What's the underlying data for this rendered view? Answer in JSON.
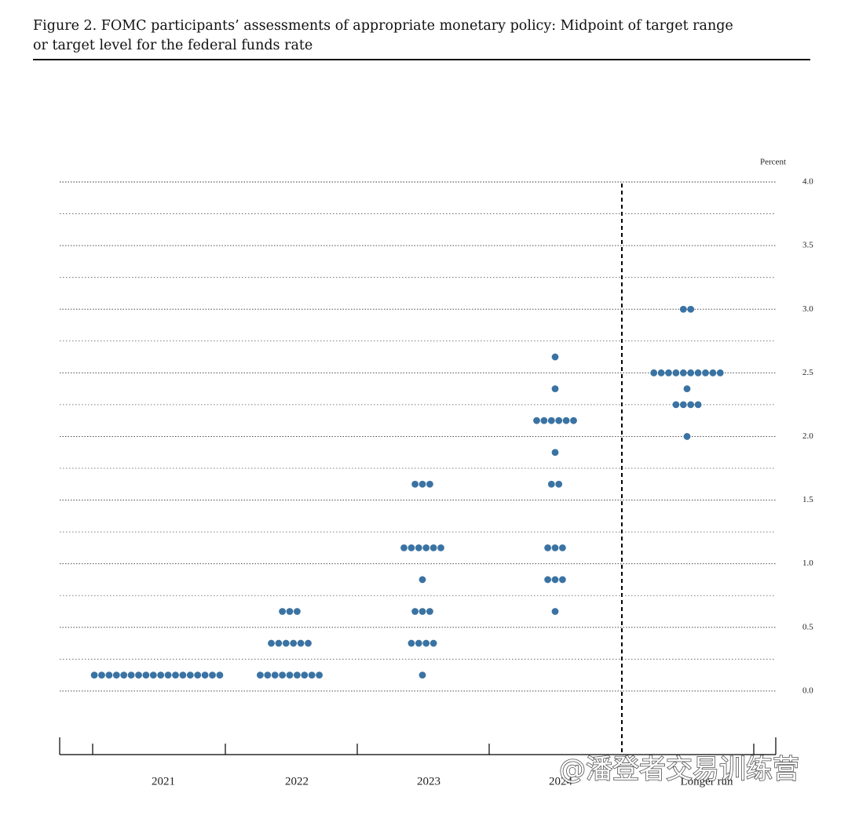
{
  "chart_data": {
    "type": "dotplot",
    "title_lines": [
      "Figure 2.  FOMC participants’ assessments of appropriate monetary policy:  Midpoint of target range",
      "or target level for the federal funds rate"
    ],
    "y_label": "Percent",
    "color": "#3a73a3",
    "ylim": [
      -0.5,
      4.0
    ],
    "yticks": [
      {
        "value": 0,
        "label": "0.0"
      },
      {
        "value": 0.5,
        "label": "0.5"
      },
      {
        "value": 1,
        "label": "1.0"
      },
      {
        "value": 1.5,
        "label": "1.5"
      },
      {
        "value": 2,
        "label": "2.0"
      },
      {
        "value": 2.5,
        "label": "2.5"
      },
      {
        "value": 3,
        "label": "3.0"
      },
      {
        "value": 3.5,
        "label": "3.5"
      },
      {
        "value": 4,
        "label": "4.0"
      }
    ],
    "yminor": [
      0.25,
      0.75,
      1.25,
      1.75,
      2.25,
      2.75,
      3.25,
      3.75
    ],
    "columns": [
      {
        "label": "2021",
        "dots": [
          {
            "rate": 0.125,
            "count": 18
          }
        ]
      },
      {
        "label": "2022",
        "dots": [
          {
            "rate": 0.125,
            "count": 9
          },
          {
            "rate": 0.375,
            "count": 6
          },
          {
            "rate": 0.625,
            "count": 3
          }
        ]
      },
      {
        "label": "2023",
        "dots": [
          {
            "rate": 0.125,
            "count": 1
          },
          {
            "rate": 0.375,
            "count": 4
          },
          {
            "rate": 0.625,
            "count": 3
          },
          {
            "rate": 0.875,
            "count": 1
          },
          {
            "rate": 1.125,
            "count": 6
          },
          {
            "rate": 1.625,
            "count": 3
          }
        ]
      },
      {
        "label": "2024",
        "dots": [
          {
            "rate": 0.625,
            "count": 1
          },
          {
            "rate": 0.875,
            "count": 3
          },
          {
            "rate": 1.125,
            "count": 3
          },
          {
            "rate": 1.625,
            "count": 2
          },
          {
            "rate": 1.875,
            "count": 1
          },
          {
            "rate": 2.125,
            "count": 6
          },
          {
            "rate": 2.375,
            "count": 1
          },
          {
            "rate": 2.625,
            "count": 1
          }
        ]
      },
      {
        "label": "Longer run",
        "dots": [
          {
            "rate": 2.0,
            "count": 1
          },
          {
            "rate": 2.25,
            "count": 4
          },
          {
            "rate": 2.375,
            "count": 1
          },
          {
            "rate": 2.5,
            "count": 10
          },
          {
            "rate": 3.0,
            "count": 2
          }
        ]
      }
    ],
    "watermark": "@潘登者交易训练营"
  }
}
